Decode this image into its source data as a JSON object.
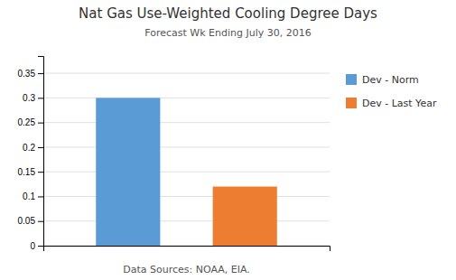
{
  "chart_data": {
    "type": "bar",
    "title": "Nat Gas Use-Weighted Cooling Degree Days",
    "subtitle": "Forecast Wk Ending July 30, 2016",
    "xlabel": "Data Sources: NOAA,  EIA.",
    "categories": [
      "Dev - Norm",
      "Dev - Last Year"
    ],
    "values": [
      0.3,
      0.12
    ],
    "colors": [
      "#5B9BD5",
      "#ED7D31"
    ],
    "ylim": [
      0,
      0.385
    ],
    "yticks": [
      0,
      0.05,
      0.1,
      0.15,
      0.2,
      0.25,
      0.3,
      0.35
    ],
    "grid": true,
    "legend": "right",
    "tick_labels": "y"
  }
}
